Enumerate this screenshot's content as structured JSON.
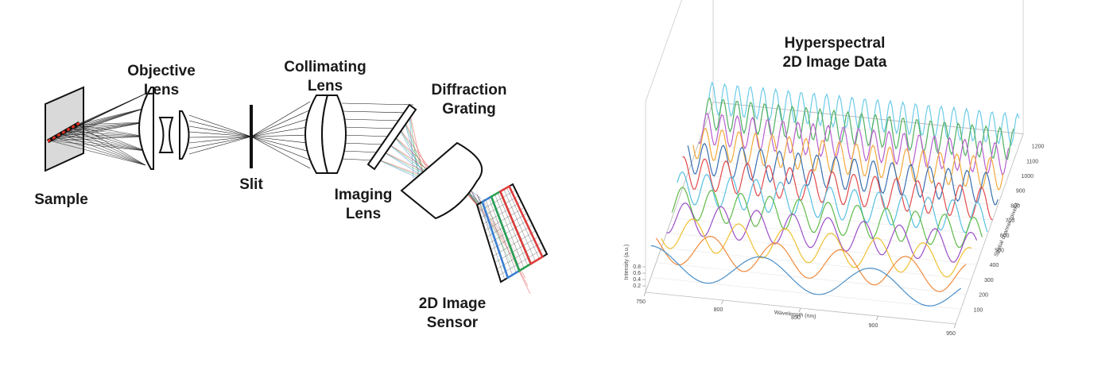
{
  "optics": {
    "objective_lens": [
      "Objective",
      "Lens"
    ],
    "sample": [
      "Sample"
    ],
    "slit": [
      "Slit"
    ],
    "collimating_lens": [
      "Collimating",
      "Lens"
    ],
    "diffraction_grating": [
      "Diffraction",
      "Grating"
    ],
    "imaging_lens": [
      "Imaging",
      "Lens"
    ],
    "image_sensor": [
      "2D Image",
      "Sensor"
    ]
  },
  "plot": {
    "title": [
      "Hyperspectral",
      "2D Image Data"
    ],
    "x_label": "Wavelength (nm)",
    "y_label": "Spatial channel (pixels)",
    "z_label": "Intensity (a.u.)",
    "xticks": [
      750,
      800,
      850,
      900,
      950
    ],
    "yticks": [
      100,
      200,
      300,
      400,
      500,
      600,
      700,
      800,
      900,
      1000,
      1100,
      1200
    ],
    "zticks": [
      0.2,
      0.4,
      0.6,
      0.8
    ]
  }
}
